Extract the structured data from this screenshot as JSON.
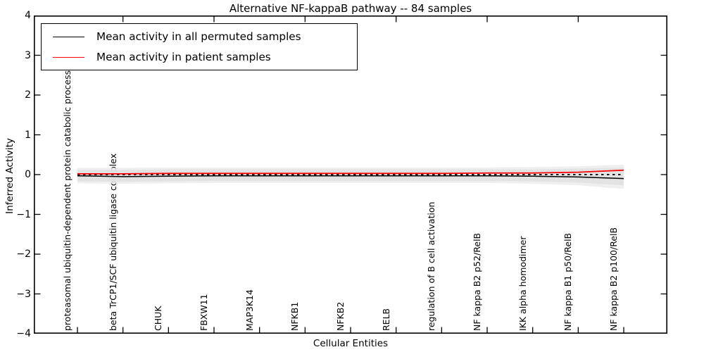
{
  "figure": {
    "title": "Alternative NF-kappaB pathway -- 84 samples",
    "xlabel": "Cellular Entities",
    "ylabel": "Inferred Activity"
  },
  "chart_data": {
    "type": "line",
    "title": "Alternative NF-kappaB pathway -- 84 samples",
    "xlabel": "Cellular Entities",
    "ylabel": "Inferred Activity",
    "ylim": [
      -4,
      4
    ],
    "grid": false,
    "legend_position": "upper-left",
    "yticks": [
      {
        "v": 4,
        "label": "4"
      },
      {
        "v": 3,
        "label": "3"
      },
      {
        "v": 2,
        "label": "2"
      },
      {
        "v": 1,
        "label": "1"
      },
      {
        "v": 0,
        "label": "0"
      },
      {
        "v": -1,
        "label": "−1"
      },
      {
        "v": -2,
        "label": "−2"
      },
      {
        "v": -3,
        "label": "−3"
      },
      {
        "v": -4,
        "label": "−4"
      }
    ],
    "categories": [
      "proteasomal ubiquitin-dependent protein catabolic process",
      "beta TrCP1/SCF ubiquitin ligase complex",
      "CHUK",
      "FBXW11",
      "MAP3K14",
      "NFKB1",
      "NFKB2",
      "RELB",
      "regulation of B cell activation",
      "NF kappa B2 p52/RelB",
      "IKK alpha homodimer",
      "NF kappa B1 p50/RelB",
      "NF kappa B2 p100/RelB"
    ],
    "series": [
      {
        "name": "Mean activity in all permuted samples",
        "color": "#000000",
        "style": "solid",
        "values": [
          -0.03,
          -0.05,
          -0.04,
          -0.03,
          -0.03,
          -0.03,
          -0.03,
          -0.03,
          -0.03,
          -0.03,
          -0.04,
          -0.06,
          -0.1
        ]
      },
      {
        "name": "Mean activity in patient samples",
        "color": "#ff0000",
        "style": "solid",
        "values": [
          0.02,
          0.02,
          0.03,
          0.03,
          0.03,
          0.03,
          0.03,
          0.03,
          0.03,
          0.04,
          0.04,
          0.06,
          0.11
        ]
      },
      {
        "name": "zero-reference-line",
        "color": "#000000",
        "style": "dotted",
        "values": [
          0,
          0,
          0,
          0,
          0,
          0,
          0,
          0,
          0,
          0,
          0,
          0,
          0
        ]
      }
    ],
    "bands": [
      {
        "name": "permuted-activity-outer-band",
        "color": "#ececec",
        "upper": [
          0.17,
          0.17,
          0.18,
          0.18,
          0.18,
          0.18,
          0.18,
          0.18,
          0.18,
          0.18,
          0.19,
          0.21,
          0.25
        ],
        "lower": [
          -0.22,
          -0.23,
          -0.22,
          -0.21,
          -0.21,
          -0.21,
          -0.21,
          -0.21,
          -0.21,
          -0.21,
          -0.23,
          -0.27,
          -0.36
        ]
      },
      {
        "name": "permuted-activity-inner-band",
        "color": "#e0e0e0",
        "upper": [
          0.12,
          0.12,
          0.13,
          0.13,
          0.13,
          0.13,
          0.13,
          0.13,
          0.13,
          0.13,
          0.13,
          0.15,
          0.18
        ],
        "lower": [
          -0.17,
          -0.18,
          -0.17,
          -0.16,
          -0.16,
          -0.16,
          -0.16,
          -0.16,
          -0.16,
          -0.16,
          -0.17,
          -0.2,
          -0.27
        ]
      }
    ]
  }
}
